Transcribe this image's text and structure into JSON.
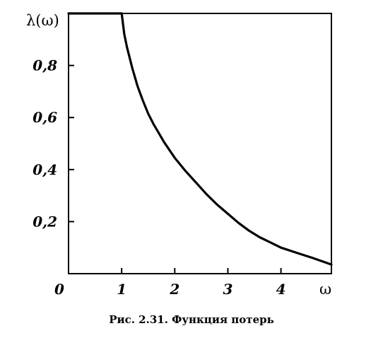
{
  "chart_data": {
    "type": "line",
    "ylabel": "λ(ω)",
    "xlabel": "ω",
    "origin_label": "0",
    "xlim": [
      0,
      4.95
    ],
    "ylim": [
      0,
      1.0
    ],
    "x_ticks": [
      1,
      2,
      3,
      4
    ],
    "x_tick_labels": [
      "1",
      "2",
      "3",
      "4"
    ],
    "y_ticks": [
      0.2,
      0.4,
      0.6,
      0.8
    ],
    "y_tick_labels": [
      "0,2",
      "0,4",
      "0,6",
      "0,8"
    ],
    "grid": false,
    "legend": "none",
    "series": [
      {
        "x": [
          0,
          1.0,
          1.05,
          1.1,
          1.2,
          1.3,
          1.4,
          1.5,
          1.6,
          1.7,
          1.8,
          1.9,
          2.0,
          2.2,
          2.4,
          2.6,
          2.8,
          3.0,
          3.2,
          3.4,
          3.6,
          3.8,
          4.0,
          4.3,
          4.6,
          4.95
        ],
        "y": [
          1.0,
          1.0,
          0.92,
          0.87,
          0.79,
          0.72,
          0.665,
          0.615,
          0.575,
          0.54,
          0.505,
          0.475,
          0.445,
          0.395,
          0.35,
          0.305,
          0.265,
          0.23,
          0.195,
          0.165,
          0.14,
          0.12,
          0.1,
          0.08,
          0.06,
          0.035
        ]
      }
    ]
  },
  "caption": "Рис. 2.31. Функция потерь"
}
